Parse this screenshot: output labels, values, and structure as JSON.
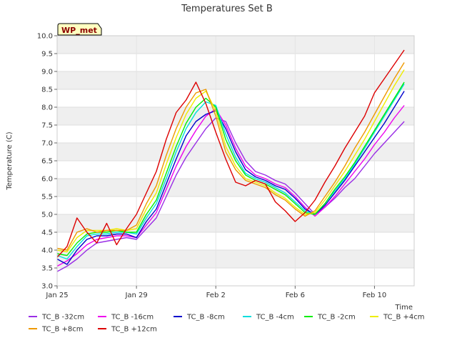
{
  "chart_data": {
    "type": "line",
    "title": "Temperatures Set B",
    "xlabel": "Time",
    "ylabel": "Temperature (C)",
    "badge": "WP_met",
    "grid": true,
    "legend_position": "bottom",
    "xlim": [
      0,
      18
    ],
    "ylim": [
      3.0,
      10.0
    ],
    "x_ticks": [
      {
        "x": 0,
        "label": "Jan 25"
      },
      {
        "x": 4,
        "label": "Jan 29"
      },
      {
        "x": 8,
        "label": "Feb 2"
      },
      {
        "x": 12,
        "label": "Feb 6"
      },
      {
        "x": 16,
        "label": "Feb 10"
      }
    ],
    "y_ticks": [
      3.0,
      3.5,
      4.0,
      4.5,
      5.0,
      5.5,
      6.0,
      6.5,
      7.0,
      7.5,
      8.0,
      8.5,
      9.0,
      9.5,
      10.0
    ],
    "series": [
      {
        "name": "TC_B -32cm",
        "color": "#9a2ee6",
        "x": [
          0,
          0.5,
          1,
          1.5,
          2,
          2.5,
          3,
          3.5,
          4,
          4.5,
          5,
          5.5,
          6,
          6.5,
          7,
          7.5,
          8,
          8.5,
          9,
          9.5,
          10,
          10.5,
          11,
          11.5,
          12,
          12.5,
          13,
          13.5,
          14,
          14.5,
          15,
          15.5,
          16,
          16.5,
          17,
          17.5
        ],
        "values": [
          3.4,
          3.55,
          3.75,
          4.0,
          4.2,
          4.25,
          4.3,
          4.35,
          4.3,
          4.6,
          4.9,
          5.5,
          6.1,
          6.6,
          7.0,
          7.4,
          7.7,
          7.6,
          7.0,
          6.5,
          6.2,
          6.1,
          5.95,
          5.85,
          5.6,
          5.3,
          5.0,
          5.2,
          5.45,
          5.75,
          6.0,
          6.35,
          6.7,
          7.0,
          7.3,
          7.6
        ]
      },
      {
        "name": "TC_B -16cm",
        "color": "#ee00ee",
        "x": [
          0,
          0.5,
          1,
          1.5,
          2,
          2.5,
          3,
          3.5,
          4,
          4.5,
          5,
          5.5,
          6,
          6.5,
          7,
          7.5,
          8,
          8.5,
          9,
          9.5,
          10,
          10.5,
          11,
          11.5,
          12,
          12.5,
          13,
          13.5,
          14,
          14.5,
          15,
          15.5,
          16,
          16.5,
          17,
          17.5
        ],
        "values": [
          3.55,
          3.7,
          3.9,
          4.15,
          4.3,
          4.35,
          4.4,
          4.4,
          4.35,
          4.7,
          5.05,
          5.7,
          6.35,
          6.9,
          7.35,
          7.75,
          7.95,
          7.5,
          6.85,
          6.35,
          6.1,
          6.0,
          5.85,
          5.75,
          5.5,
          5.2,
          4.95,
          5.2,
          5.5,
          5.85,
          6.2,
          6.55,
          6.95,
          7.3,
          7.7,
          8.05
        ]
      },
      {
        "name": "TC_B -8cm",
        "color": "#0000cc",
        "x": [
          0,
          0.5,
          1,
          1.5,
          2,
          2.5,
          3,
          3.5,
          4,
          4.5,
          5,
          5.5,
          6,
          6.5,
          7,
          7.5,
          8,
          8.5,
          9,
          9.5,
          10,
          10.5,
          11,
          11.5,
          12,
          12.5,
          13,
          13.5,
          14,
          14.5,
          15,
          15.5,
          16,
          16.5,
          17,
          17.5
        ],
        "values": [
          3.75,
          3.6,
          4.0,
          4.3,
          4.4,
          4.4,
          4.45,
          4.45,
          4.35,
          4.8,
          5.15,
          5.85,
          6.55,
          7.2,
          7.6,
          7.8,
          7.9,
          7.4,
          6.75,
          6.25,
          6.05,
          5.95,
          5.8,
          5.7,
          5.45,
          5.15,
          5.0,
          5.25,
          5.6,
          5.95,
          6.35,
          6.75,
          7.15,
          7.55,
          8.0,
          8.45
        ]
      },
      {
        "name": "TC_B -4cm",
        "color": "#00dddd",
        "x": [
          0,
          0.5,
          1,
          1.5,
          2,
          2.5,
          3,
          3.5,
          4,
          4.5,
          5,
          5.5,
          6,
          6.5,
          7,
          7.5,
          8,
          8.5,
          9,
          9.5,
          10,
          10.5,
          11,
          11.5,
          12,
          12.5,
          13,
          13.5,
          14,
          14.5,
          15,
          15.5,
          16,
          16.5,
          17,
          17.5
        ],
        "values": [
          3.85,
          3.75,
          4.1,
          4.4,
          4.45,
          4.45,
          4.5,
          4.5,
          4.45,
          4.9,
          5.3,
          6.0,
          6.75,
          7.4,
          7.85,
          8.15,
          8.05,
          7.25,
          6.6,
          6.15,
          6.0,
          5.9,
          5.75,
          5.6,
          5.35,
          5.1,
          5.0,
          5.3,
          5.65,
          6.0,
          6.4,
          6.85,
          7.3,
          7.75,
          8.2,
          8.65
        ]
      },
      {
        "name": "TC_B -2cm",
        "color": "#00ee00",
        "x": [
          0,
          0.5,
          1,
          1.5,
          2,
          2.5,
          3,
          3.5,
          4,
          4.5,
          5,
          5.5,
          6,
          6.5,
          7,
          7.5,
          8,
          8.5,
          9,
          9.5,
          10,
          10.5,
          11,
          11.5,
          12,
          12.5,
          13,
          13.5,
          14,
          14.5,
          15,
          15.5,
          16,
          16.5,
          17,
          17.5
        ],
        "values": [
          3.9,
          3.85,
          4.2,
          4.45,
          4.5,
          4.5,
          4.55,
          4.5,
          4.5,
          5.0,
          5.4,
          6.15,
          6.9,
          7.55,
          8.0,
          8.25,
          8.0,
          7.1,
          6.5,
          6.1,
          5.95,
          5.85,
          5.7,
          5.55,
          5.3,
          5.05,
          5.0,
          5.3,
          5.7,
          6.05,
          6.45,
          6.9,
          7.35,
          7.8,
          8.25,
          8.7
        ]
      },
      {
        "name": "TC_B +4cm",
        "color": "#eeee00",
        "x": [
          0,
          0.5,
          1,
          1.5,
          2,
          2.5,
          3,
          3.5,
          4,
          4.5,
          5,
          5.5,
          6,
          6.5,
          7,
          7.5,
          8,
          8.5,
          9,
          9.5,
          10,
          10.5,
          11,
          11.5,
          12,
          12.5,
          13,
          13.5,
          14,
          14.5,
          15,
          15.5,
          16,
          16.5,
          17,
          17.5
        ],
        "values": [
          4.0,
          3.95,
          4.35,
          4.55,
          4.55,
          4.55,
          4.6,
          4.55,
          4.6,
          5.15,
          5.6,
          6.4,
          7.15,
          7.8,
          8.25,
          8.45,
          7.9,
          6.9,
          6.35,
          6.0,
          5.9,
          5.8,
          5.6,
          5.45,
          5.2,
          5.0,
          5.05,
          5.4,
          5.8,
          6.2,
          6.65,
          7.1,
          7.6,
          8.1,
          8.6,
          9.05
        ]
      },
      {
        "name": "TC_B +8cm",
        "color": "#ee9900",
        "x": [
          0,
          0.5,
          1,
          1.5,
          2,
          2.5,
          3,
          3.5,
          4,
          4.5,
          5,
          5.5,
          6,
          6.5,
          7,
          7.5,
          8,
          8.5,
          9,
          9.5,
          10,
          10.5,
          11,
          11.5,
          12,
          12.5,
          13,
          13.5,
          14,
          14.5,
          15,
          15.5,
          16,
          16.5,
          17,
          17.5
        ],
        "values": [
          4.05,
          4.0,
          4.5,
          4.6,
          4.5,
          4.55,
          4.55,
          4.55,
          4.7,
          5.3,
          5.8,
          6.65,
          7.4,
          8.0,
          8.4,
          8.5,
          7.75,
          6.75,
          6.25,
          5.95,
          5.85,
          5.75,
          5.55,
          5.4,
          5.15,
          4.95,
          5.1,
          5.5,
          5.9,
          6.35,
          6.85,
          7.3,
          7.8,
          8.3,
          8.8,
          9.25
        ]
      },
      {
        "name": "TC_B +12cm",
        "color": "#dd0000",
        "x": [
          0,
          0.5,
          1,
          1.5,
          2,
          2.5,
          3,
          3.5,
          4,
          4.5,
          5,
          5.5,
          6,
          6.5,
          7,
          7.5,
          8,
          8.5,
          9,
          9.5,
          10,
          10.5,
          11,
          11.5,
          12,
          12.5,
          13,
          13.5,
          14,
          14.5,
          15,
          15.5,
          16,
          16.5,
          17,
          17.5
        ],
        "values": [
          3.8,
          4.1,
          4.9,
          4.5,
          4.2,
          4.75,
          4.15,
          4.6,
          5.0,
          5.6,
          6.2,
          7.1,
          7.85,
          8.2,
          8.7,
          8.1,
          7.3,
          6.55,
          5.9,
          5.8,
          5.95,
          5.85,
          5.35,
          5.1,
          4.8,
          5.05,
          5.4,
          5.9,
          6.35,
          6.85,
          7.3,
          7.75,
          8.4,
          8.8,
          9.2,
          9.6
        ]
      }
    ]
  }
}
